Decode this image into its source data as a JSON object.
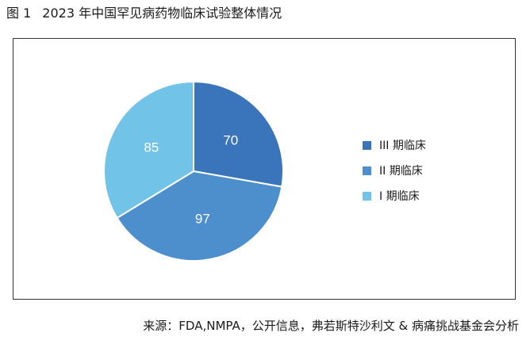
{
  "figure": {
    "number": "图 1",
    "title": "2023 年中国罕见病药物临床试验整体情况"
  },
  "source": "来源：FDA,NMPA，公开信息，弗若斯特沙利文 & 病痛挑战基金会分析",
  "chart_data": {
    "type": "pie",
    "title": "",
    "start_angle_deg": 0,
    "direction": "clockwise",
    "legend_position": "right",
    "slices": [
      {
        "label": "III 期临床",
        "value": 70,
        "color": "#3a74bb"
      },
      {
        "label": "II 期临床",
        "value": 97,
        "color": "#4d8fcc"
      },
      {
        "label": "I 期临床",
        "value": 85,
        "color": "#72c3e8"
      }
    ],
    "value_label_color": "#ffffff"
  }
}
